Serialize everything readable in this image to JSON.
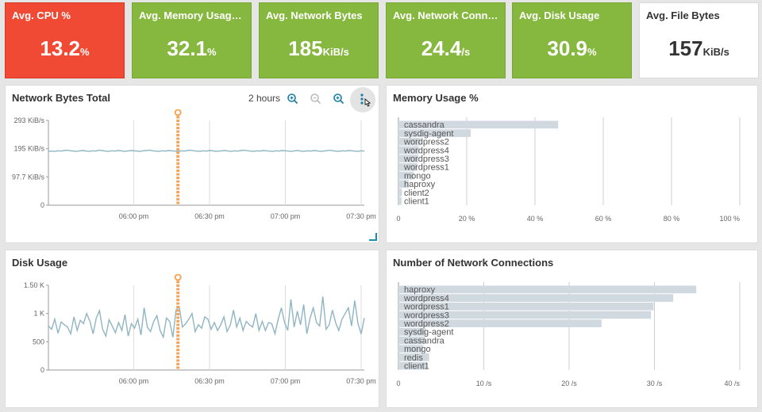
{
  "tiles": [
    {
      "title": "Avg. CPU %",
      "value": "13.2",
      "unit": "%",
      "color": "#f04a35"
    },
    {
      "title": "Avg. Memory Usage %",
      "value": "32.1",
      "unit": "%",
      "color": "#86b83f"
    },
    {
      "title": "Avg. Network Bytes",
      "value": "185",
      "unit": "KiB/s",
      "color": "#86b83f"
    },
    {
      "title": "Avg. Network Conne…",
      "value": "24.4",
      "unit": "/s",
      "color": "#86b83f"
    },
    {
      "title": "Avg. Disk Usage",
      "value": "30.9",
      "unit": "%",
      "color": "#86b83f"
    },
    {
      "title": "Avg. File Bytes",
      "value": "157",
      "unit": "KiB/s",
      "color": "#ffffff"
    }
  ],
  "panels": {
    "network_bytes": {
      "title": "Network Bytes Total",
      "time_range": "2 hours"
    },
    "memory": {
      "title": "Memory Usage %"
    },
    "disk": {
      "title": "Disk Usage"
    },
    "connections": {
      "title": "Number of Network Connections"
    }
  },
  "icons": {
    "zoom_in": "zoom-in-icon",
    "zoom_out": "zoom-out-icon",
    "zoom_reset": "zoom-reset-icon",
    "menu": "kebab-menu-icon",
    "cursor": "hand-cursor-icon"
  },
  "colors": {
    "line": "#8fb5c3",
    "marker": "#f5a55a",
    "bar": "#d1d9e0",
    "grid": "#bbbbbb"
  },
  "chart_data": [
    {
      "id": "network_bytes",
      "type": "line",
      "title": "Network Bytes Total",
      "xticks": [
        "06:00 pm",
        "06:30 pm",
        "07:00 pm",
        "07:30 pm"
      ],
      "yticks": [
        "293 KiB/s",
        "195 KiB/s",
        "97.7 KiB/s",
        "0"
      ],
      "ylim": [
        0,
        293
      ],
      "xlim": [
        0,
        100
      ],
      "marker_x": 41,
      "values": [
        186,
        187,
        186,
        188,
        187,
        189,
        190,
        188,
        187,
        186,
        188,
        189,
        187,
        186,
        188,
        187,
        190,
        189,
        187,
        186,
        188,
        187,
        189,
        188,
        186,
        187,
        189,
        188,
        187,
        186,
        188,
        189,
        190,
        188,
        187,
        186,
        188,
        187,
        189,
        188,
        187,
        186,
        188,
        187,
        189,
        190,
        188,
        187,
        186,
        188,
        187,
        189,
        188,
        186,
        187,
        188,
        189,
        187,
        186,
        188,
        187,
        189,
        190,
        188,
        187,
        186,
        188,
        187,
        189,
        188,
        187,
        186,
        188,
        187,
        189,
        188,
        187,
        186,
        188,
        189,
        187,
        186,
        188,
        187,
        189,
        188,
        186,
        187,
        188,
        190,
        188,
        187,
        186,
        188,
        187,
        189,
        188,
        187,
        186,
        188,
        187
      ]
    },
    {
      "id": "memory",
      "type": "bar",
      "title": "Memory Usage %",
      "categories": [
        "cassandra",
        "sysdig-agent",
        "wordpress2",
        "wordpress4",
        "wordpress3",
        "wordpress1",
        "mongo",
        "haproxy",
        "client2",
        "client1"
      ],
      "values": [
        46.8,
        21.2,
        6.5,
        6.0,
        5.8,
        5.5,
        4.5,
        3.0,
        1.0,
        0.9
      ],
      "xticks": [
        "0",
        "20 %",
        "40 %",
        "60 %",
        "80 %",
        "100 %"
      ],
      "xlim": [
        0,
        100
      ]
    },
    {
      "id": "disk",
      "type": "line",
      "title": "Disk Usage",
      "xticks": [
        "06:00 pm",
        "06:30 pm",
        "07:00 pm",
        "07:30 pm"
      ],
      "yticks": [
        "1.50 K",
        "1 K",
        "500",
        "0"
      ],
      "ylim": [
        0,
        1500
      ],
      "xlim": [
        0,
        100
      ],
      "marker_x": 41,
      "values": [
        780,
        720,
        900,
        650,
        850,
        800,
        760,
        640,
        940,
        700,
        880,
        820,
        1000,
        860,
        640,
        920,
        1050,
        720,
        600,
        890,
        780,
        660,
        840,
        700,
        980,
        600,
        820,
        740,
        900,
        620,
        1100,
        760,
        680,
        860,
        960,
        700,
        580,
        920,
        860,
        580,
        1060,
        1120,
        760,
        820,
        900,
        1000,
        680,
        800,
        740,
        940,
        900,
        720,
        840,
        700,
        800,
        940,
        680,
        800,
        1060,
        760,
        920,
        700,
        860,
        800,
        760,
        1000,
        700,
        860,
        700,
        840,
        820,
        640,
        900,
        1100,
        840,
        700,
        1250,
        760,
        1040,
        800,
        1160,
        640,
        920,
        1100,
        840,
        780,
        1300,
        720,
        800,
        1060,
        840,
        700,
        900,
        1000,
        1100,
        780,
        1230,
        820,
        640,
        920
      ]
    },
    {
      "id": "connections",
      "type": "bar",
      "title": "Number of Network Connections",
      "categories": [
        "haproxy",
        "wordpress4",
        "wordpress1",
        "wordpress3",
        "wordpress2",
        "sysdig-agent",
        "cassandra",
        "mongo",
        "redis",
        "client1"
      ],
      "values": [
        34.9,
        32.2,
        29.9,
        29.6,
        23.8,
        3.2,
        3.1,
        2.9,
        3.6,
        3.4
      ],
      "xticks": [
        "0",
        "10 /s",
        "20 /s",
        "30 /s",
        "40 /s"
      ],
      "xlim": [
        0,
        40
      ]
    }
  ]
}
